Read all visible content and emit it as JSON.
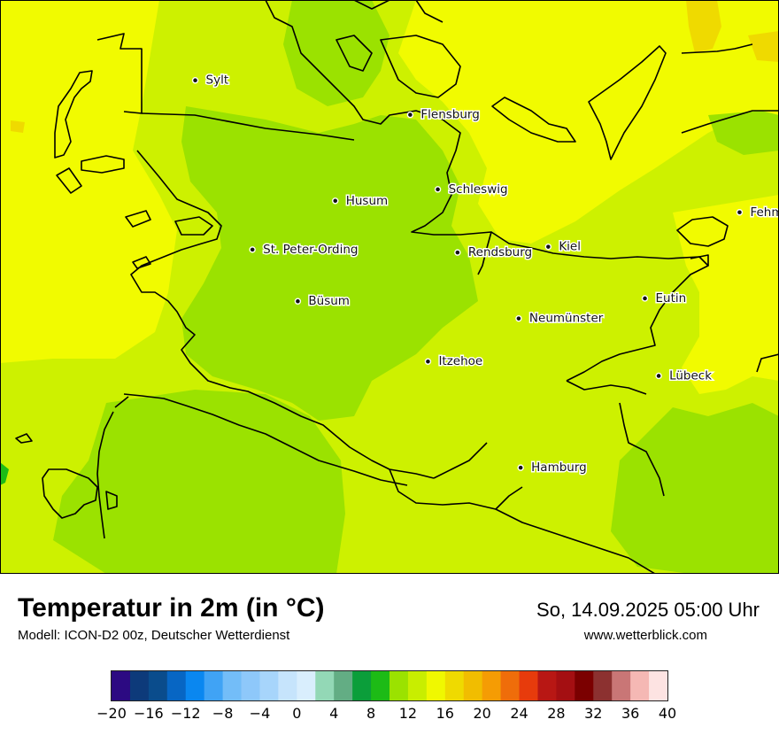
{
  "map": {
    "cities": [
      {
        "name": "Sylt",
        "lon": 8.34,
        "lat": 54.9
      },
      {
        "name": "Flensburg",
        "lon": 9.43,
        "lat": 54.78
      },
      {
        "name": "Schleswig",
        "lon": 9.57,
        "lat": 54.52
      },
      {
        "name": "Husum",
        "lon": 9.05,
        "lat": 54.48
      },
      {
        "name": "St. Peter-Ording",
        "lon": 8.63,
        "lat": 54.31
      },
      {
        "name": "Rendsburg",
        "lon": 9.67,
        "lat": 54.3
      },
      {
        "name": "Kiel",
        "lon": 10.13,
        "lat": 54.32
      },
      {
        "name": "Büsum",
        "lon": 8.86,
        "lat": 54.13
      },
      {
        "name": "Neumünster",
        "lon": 9.98,
        "lat": 54.07
      },
      {
        "name": "Eutin",
        "lon": 10.62,
        "lat": 54.14
      },
      {
        "name": "Itzehoe",
        "lon": 9.52,
        "lat": 53.92
      },
      {
        "name": "Lübeck",
        "lon": 10.69,
        "lat": 53.87
      },
      {
        "name": "Hamburg",
        "lon": 9.99,
        "lat": 53.55
      },
      {
        "name": "Fehmarn",
        "lon": 11.1,
        "lat": 54.44
      }
    ]
  },
  "header": {
    "title": "Temperatur in 2m (in °C)",
    "model": "Modell: ICON-D2 00z, Deutscher Wetterdienst",
    "datetime": "So, 14.09.2025 05:00 Uhr",
    "website": "www.wetterblick.com"
  },
  "legend": {
    "unit": "°C",
    "min": -20,
    "max": 40,
    "step": 2,
    "tick_labels": [
      "−20",
      "−16",
      "−12",
      "−8",
      "−4",
      "0",
      "4",
      "8",
      "12",
      "16",
      "20",
      "24",
      "28",
      "32",
      "36",
      "40"
    ],
    "colors": [
      "#2c0a82",
      "#0d3a7a",
      "#0a4c8c",
      "#0766c4",
      "#0a87f0",
      "#40a3f5",
      "#73bdf8",
      "#8ec8fa",
      "#a7d5fb",
      "#c6e4fc",
      "#d9eefd",
      "#93d8b6",
      "#63ad84",
      "#0b9e3a",
      "#1dbb16",
      "#9be200",
      "#c8ee00",
      "#f0f800",
      "#efda00",
      "#f1bd00",
      "#f59c04",
      "#ef6d0a",
      "#e73b0c",
      "#b81714",
      "#a40f12",
      "#7b0000",
      "#8c3130",
      "#c97676",
      "#f5b8b4",
      "#fde3e2"
    ]
  }
}
